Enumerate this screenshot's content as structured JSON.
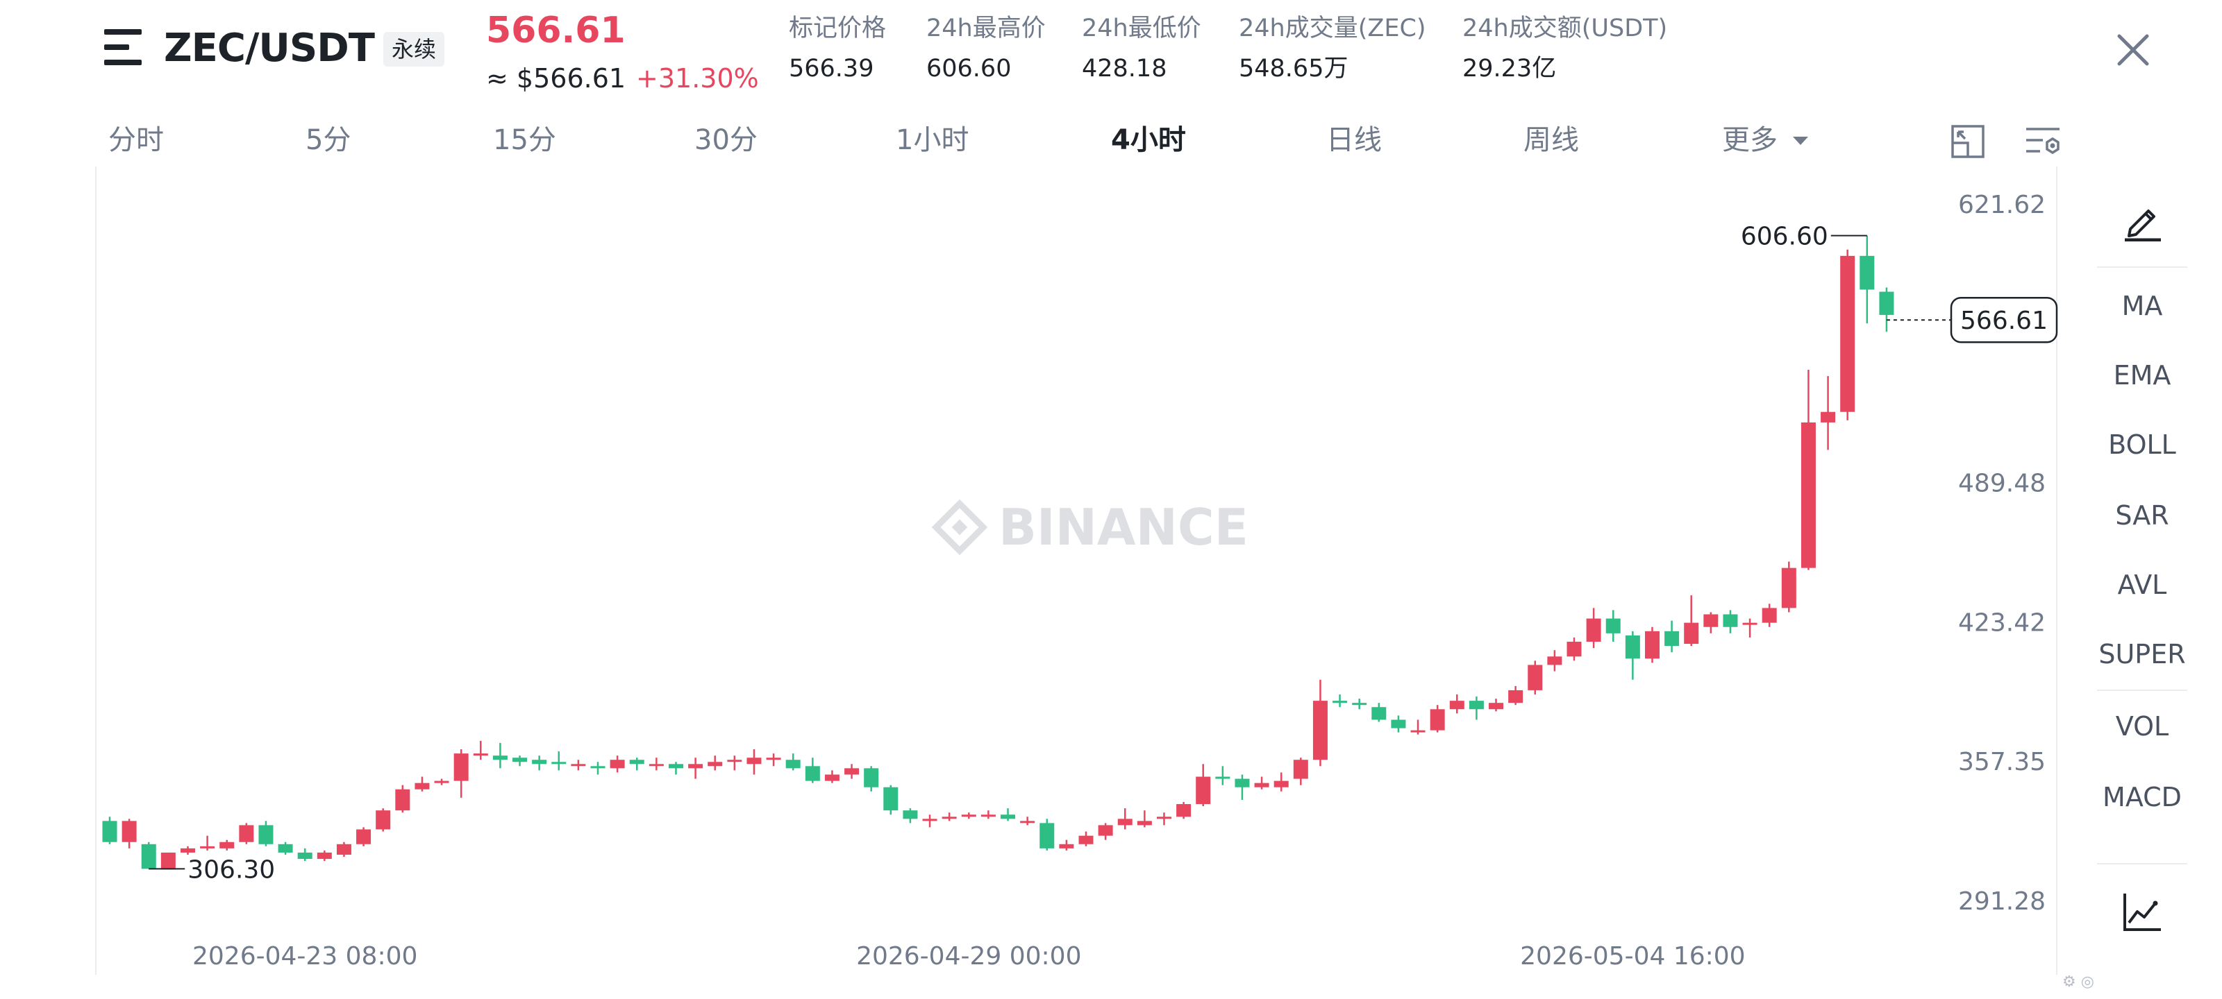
{
  "header": {
    "symbol": "ZEC/USDT",
    "perp_tag": "永续",
    "last_price": "566.61",
    "approx_usd": "≈ $566.61",
    "change_pct": "+31.30%",
    "stats": [
      {
        "label": "标记价格",
        "value": "566.39"
      },
      {
        "label": "24h最高价",
        "value": "606.60"
      },
      {
        "label": "24h最低价",
        "value": "428.18"
      },
      {
        "label": "24h成交量(ZEC)",
        "value": "548.65万"
      },
      {
        "label": "24h成交额(USDT)",
        "value": "29.23亿"
      }
    ]
  },
  "intervals": [
    "分时",
    "5分",
    "15分",
    "30分",
    "1小时",
    "4小时",
    "日线",
    "周线",
    "更多"
  ],
  "active_interval": "4小时",
  "indicators": [
    "MA",
    "EMA",
    "BOLL",
    "SAR",
    "AVL",
    "SUPER",
    "VOL",
    "MACD"
  ],
  "icons": {
    "menu": "menu-icon",
    "close": "close-icon",
    "more_dropdown": "caret-down-icon",
    "fullscreen": "expand-icon",
    "chart_settings": "settings-icon",
    "draw": "pencil-icon",
    "chart_type": "line-chart-icon"
  },
  "colors": {
    "up": "#e7475e",
    "down": "#2ebd85",
    "text_primary": "#1e2329",
    "text_secondary": "#707a8a",
    "watermark": "#dddfe3"
  },
  "chart_data": {
    "type": "candlestick",
    "interval": "4h",
    "up_color": "#e7475e",
    "down_color": "#2ebd85",
    "watermark": "BINANCE",
    "y_ticks": [
      621.62,
      489.48,
      423.42,
      357.35,
      291.28
    ],
    "y_tick_labels": [
      "621.62",
      "489.48",
      "423.42",
      "357.35",
      "291.28"
    ],
    "x_tick_labels": [
      "2026-04-23 08:00",
      "2026-04-29 00:00",
      "2026-05-04 16:00"
    ],
    "x_tick_index": [
      10,
      44,
      78
    ],
    "last_price": 566.61,
    "last_price_label": "566.61",
    "max_annotation": {
      "label": "606.60",
      "value": 606.6,
      "index": 90
    },
    "min_annotation": {
      "label": "306.30",
      "value": 306.3,
      "index": 2
    },
    "candles": [
      [
        329,
        319,
        331,
        318
      ],
      [
        319,
        329,
        330,
        316
      ],
      [
        318,
        306.3,
        319,
        306.3
      ],
      [
        306,
        314,
        314,
        306
      ],
      [
        314,
        316,
        317,
        313
      ],
      [
        316,
        317,
        322,
        315
      ],
      [
        316,
        319,
        320,
        315
      ],
      [
        319,
        327,
        328,
        318
      ],
      [
        327,
        318,
        329,
        317
      ],
      [
        318,
        314,
        319,
        313
      ],
      [
        314,
        311,
        316,
        310
      ],
      [
        311,
        314,
        315,
        310
      ],
      [
        313,
        318,
        319,
        312
      ],
      [
        318,
        325,
        326,
        317
      ],
      [
        325,
        334,
        335,
        324
      ],
      [
        334,
        344,
        346,
        333
      ],
      [
        344,
        347,
        350,
        343
      ],
      [
        347,
        348,
        349,
        346
      ],
      [
        348,
        361,
        363,
        340
      ],
      [
        361,
        361,
        367,
        358
      ],
      [
        360,
        358,
        366,
        354
      ],
      [
        359,
        357,
        360,
        355
      ],
      [
        358,
        356,
        360,
        353
      ],
      [
        357,
        356,
        362,
        353
      ],
      [
        356,
        356,
        358,
        353
      ],
      [
        355,
        354,
        357,
        351
      ],
      [
        354,
        358,
        360,
        352
      ],
      [
        358,
        356,
        359,
        353
      ],
      [
        356,
        356,
        359,
        353
      ],
      [
        356,
        354,
        357,
        351
      ],
      [
        354,
        356,
        359,
        349
      ],
      [
        355,
        357,
        360,
        353
      ],
      [
        358,
        358,
        360,
        353
      ],
      [
        356,
        359,
        363,
        351
      ],
      [
        358,
        359,
        361,
        355
      ],
      [
        358,
        354,
        361,
        353
      ],
      [
        355,
        348,
        359,
        347
      ],
      [
        348,
        351,
        353,
        347
      ],
      [
        351,
        354,
        356,
        349
      ],
      [
        354,
        345,
        355,
        343
      ],
      [
        345,
        334,
        346,
        332
      ],
      [
        334,
        330,
        335,
        328
      ],
      [
        330,
        330,
        332,
        326
      ],
      [
        330,
        331,
        333,
        329
      ],
      [
        331,
        332,
        333,
        330
      ],
      [
        332,
        332,
        334,
        330
      ],
      [
        332,
        330,
        335,
        329
      ],
      [
        329,
        329,
        331,
        327
      ],
      [
        328,
        316,
        330,
        315
      ],
      [
        316,
        318,
        320,
        315
      ],
      [
        318,
        322,
        324,
        317
      ],
      [
        322,
        327,
        328,
        320
      ],
      [
        327,
        330,
        335,
        325
      ],
      [
        327,
        329,
        334,
        326
      ],
      [
        330,
        331,
        333,
        327
      ],
      [
        331,
        337,
        338,
        330
      ],
      [
        337,
        350,
        356,
        336
      ],
      [
        350,
        349,
        355,
        346
      ],
      [
        349,
        345,
        351,
        339
      ],
      [
        345,
        347,
        350,
        344
      ],
      [
        345,
        348,
        352,
        343
      ],
      [
        349,
        358,
        359,
        346
      ],
      [
        358,
        386,
        396,
        355
      ],
      [
        386,
        385,
        389,
        383
      ],
      [
        385,
        384,
        387,
        382
      ],
      [
        383,
        377,
        385,
        376
      ],
      [
        377,
        373,
        379,
        371
      ],
      [
        372,
        372,
        377,
        370
      ],
      [
        372,
        382,
        384,
        371
      ],
      [
        382,
        386,
        389,
        380
      ],
      [
        386,
        382,
        388,
        377
      ],
      [
        382,
        385,
        387,
        381
      ],
      [
        385,
        391,
        393,
        384
      ],
      [
        391,
        403,
        405,
        389
      ],
      [
        403,
        407,
        410,
        400
      ],
      [
        407,
        414,
        416,
        405
      ],
      [
        414,
        425,
        430,
        411
      ],
      [
        425,
        418,
        429,
        414
      ],
      [
        417,
        406,
        419,
        396
      ],
      [
        406,
        419,
        421,
        404
      ],
      [
        419,
        412,
        424,
        409
      ],
      [
        413,
        423,
        436,
        412
      ],
      [
        421,
        427,
        428,
        418
      ],
      [
        427,
        421,
        429,
        418
      ],
      [
        423,
        423,
        425,
        416
      ],
      [
        423,
        430,
        432,
        421
      ],
      [
        430,
        449,
        452,
        428
      ],
      [
        449,
        518,
        543,
        448
      ],
      [
        518,
        523,
        540,
        505
      ],
      [
        523,
        597,
        600,
        519
      ],
      [
        597,
        581,
        606.6,
        565
      ],
      [
        580,
        569,
        582,
        561
      ]
    ]
  }
}
